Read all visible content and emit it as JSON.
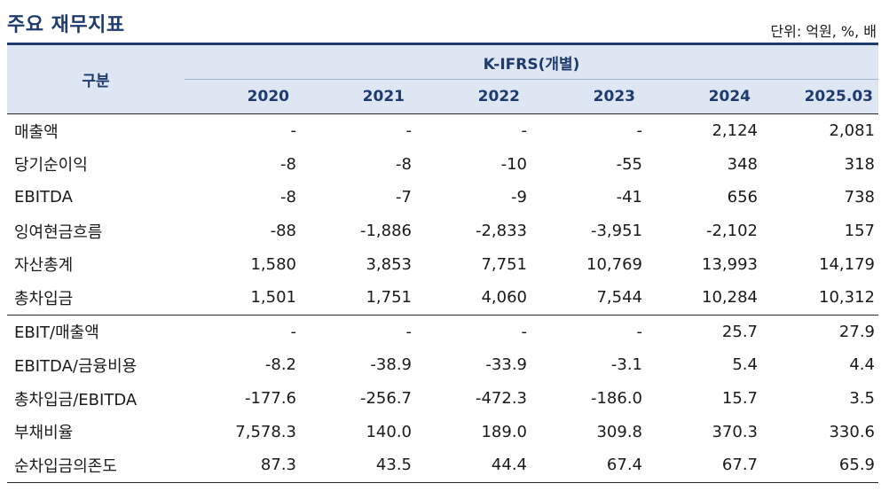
{
  "title": "주요 재무지표",
  "unit": "단위: 억원, %, 배",
  "table": {
    "category_header": "구분",
    "group_header": "K-IFRS(개별)",
    "years": [
      "2020",
      "2021",
      "2022",
      "2023",
      "2024",
      "2025.03"
    ],
    "rows": [
      {
        "label": "매출액",
        "values": [
          "-",
          "-",
          "-",
          "-",
          "2,124",
          "2,081"
        ]
      },
      {
        "label": "당기순이익",
        "values": [
          "-8",
          "-8",
          "-10",
          "-55",
          "348",
          "318"
        ]
      },
      {
        "label": "EBITDA",
        "values": [
          "-8",
          "-7",
          "-9",
          "-41",
          "656",
          "738"
        ]
      },
      {
        "label": "잉여현금흐름",
        "values": [
          "-88",
          "-1,886",
          "-2,833",
          "-3,951",
          "-2,102",
          "157"
        ]
      },
      {
        "label": "자산총계",
        "values": [
          "1,580",
          "3,853",
          "7,751",
          "10,769",
          "13,993",
          "14,179"
        ]
      },
      {
        "label": "총차입금",
        "values": [
          "1,501",
          "1,751",
          "4,060",
          "7,544",
          "10,284",
          "10,312"
        ]
      },
      {
        "label": "EBIT/매출액",
        "values": [
          "-",
          "-",
          "-",
          "-",
          "25.7",
          "27.9"
        ]
      },
      {
        "label": "EBITDA/금융비용",
        "values": [
          "-8.2",
          "-38.9",
          "-33.9",
          "-3.1",
          "5.4",
          "4.4"
        ]
      },
      {
        "label": "총차입금/EBITDA",
        "values": [
          "-177.6",
          "-256.7",
          "-472.3",
          "-186.0",
          "15.7",
          "3.5"
        ]
      },
      {
        "label": "부채비율",
        "values": [
          "7,578.3",
          "140.0",
          "189.0",
          "309.8",
          "370.3",
          "330.6"
        ]
      },
      {
        "label": "순차입금의존도",
        "values": [
          "87.3",
          "43.5",
          "44.4",
          "67.4",
          "67.7",
          "65.9"
        ]
      }
    ]
  },
  "colors": {
    "title": "#1f3b6e",
    "header_bg": "#dde6f2",
    "header_text": "#1f3b6e",
    "rule": "#2a2a2a"
  }
}
